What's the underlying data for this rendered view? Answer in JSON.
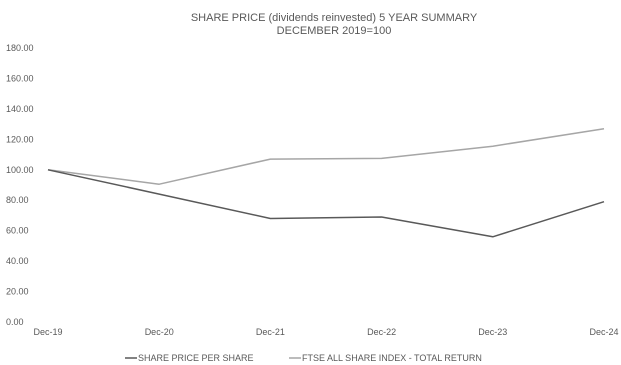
{
  "chart_data": {
    "type": "line",
    "title": "SHARE PRICE (dividends reinvested) 5 YEAR SUMMARY",
    "subtitle": "DECEMBER 2019=100",
    "xlabel": "",
    "ylabel": "",
    "categories": [
      "Dec-19",
      "Dec-20",
      "Dec-21",
      "Dec-22",
      "Dec-23",
      "Dec-24"
    ],
    "ylim": [
      0,
      180
    ],
    "yticks": [
      "0.00",
      "20.00",
      "40.00",
      "60.00",
      "80.00",
      "100.00",
      "120.00",
      "140.00",
      "160.00",
      "180.00"
    ],
    "grid": false,
    "legend_position": "bottom",
    "series": [
      {
        "name": "SHARE PRICE PER SHARE",
        "color": "#595959",
        "values": [
          100,
          84,
          68,
          69,
          56,
          79
        ]
      },
      {
        "name": "FTSE ALL SHARE INDEX - TOTAL RETURN",
        "color": "#a6a6a6",
        "values": [
          100,
          90.5,
          107,
          107.5,
          115.5,
          127
        ]
      }
    ]
  }
}
